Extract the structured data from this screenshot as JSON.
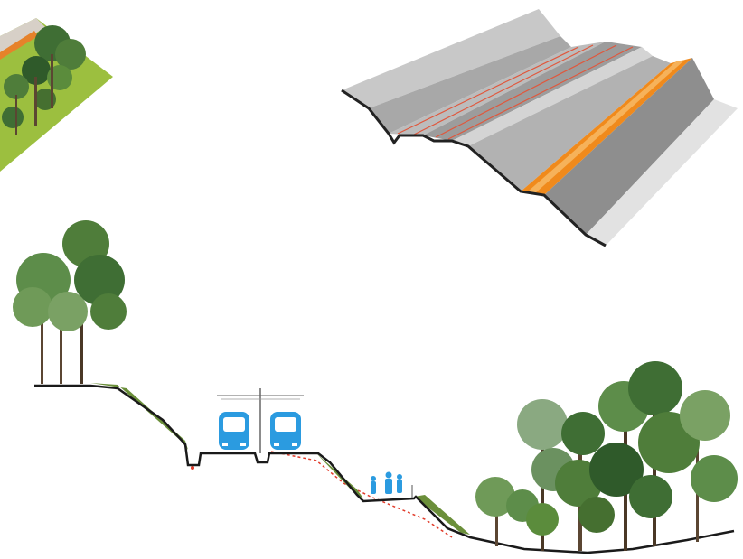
{
  "colors": {
    "background": "#ffffff",
    "concrete_light": "#e6e6e6",
    "concrete_mid": "#bdbdbd",
    "concrete_dark": "#8a8a8a",
    "concrete_edge": "#222222",
    "orange_lane": "#f08a1c",
    "rail_red": "#e0573c",
    "grass": "#9cbf3f",
    "tree_green": "#4f7d3a",
    "tree_dark": "#2f5a2a",
    "train_blue": "#2b9be0",
    "ground_line": "#1a1a1a",
    "drain_pipe_red": "#e13b2a"
  },
  "icons": {
    "train_left": "tram-front-icon",
    "train_right": "tram-front-icon",
    "overhead_line": "catenary-mast-icon",
    "pedestrians": "pedestrian-icon",
    "trees": "tree-icon"
  }
}
